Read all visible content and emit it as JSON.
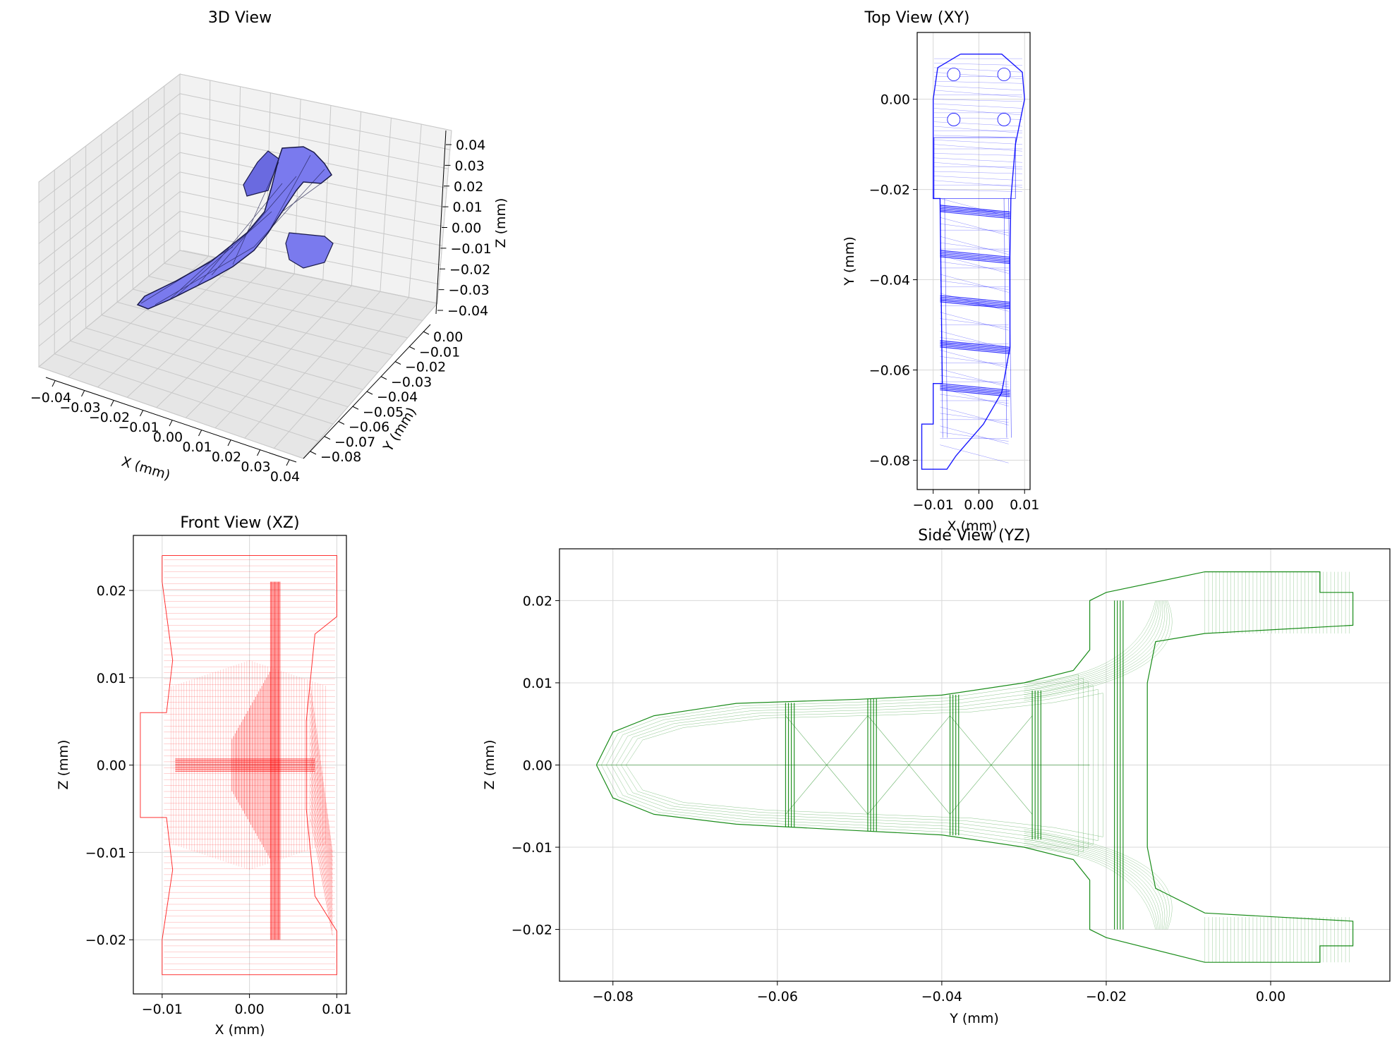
{
  "figure": {
    "colors": {
      "view3d_face": "#7a7aee",
      "view3d_edge": "#1a1a4a",
      "top_view": "#0000ff",
      "front_view": "#ff0000",
      "side_view": "#008000",
      "grid": "#d8d8d8",
      "pane": "#f2f2f2"
    }
  },
  "chart_data": [
    {
      "panel": "view3d",
      "type": "scatter",
      "title": "3D View",
      "xlabel": "X (mm)",
      "ylabel": "Y (mm)",
      "zlabel": "Z (mm)",
      "xticks": [
        "−0.04",
        "−0.03",
        "−0.02",
        "−0.01",
        "0.00",
        "0.01",
        "0.02",
        "0.03",
        "0.04"
      ],
      "yticks": [
        "0.00",
        "−0.01",
        "−0.02",
        "−0.03",
        "−0.04",
        "−0.05",
        "−0.06",
        "−0.07",
        "−0.08"
      ],
      "zticks": [
        "0.04",
        "0.03",
        "0.02",
        "0.01",
        "0.00",
        "−0.01",
        "−0.02",
        "−0.03",
        "−0.04"
      ],
      "xlim": [
        -0.04,
        0.04
      ],
      "ylim": [
        -0.08,
        0.0
      ],
      "zlim": [
        -0.04,
        0.04
      ],
      "grid": true
    },
    {
      "panel": "top",
      "type": "line",
      "title": "Top View (XY)",
      "xlabel": "X (mm)",
      "ylabel": "Y (mm)",
      "xlim": [
        -0.0135,
        0.0112
      ],
      "ylim": [
        -0.0865,
        0.0148
      ],
      "xticks": [
        -0.01,
        0.0,
        0.01
      ],
      "xtick_labels": [
        "−0.01",
        "0.00",
        "0.01"
      ],
      "yticks": [
        0.0,
        -0.02,
        -0.04,
        -0.06,
        -0.08
      ],
      "ytick_labels": [
        "0.00",
        "−0.02",
        "−0.04",
        "−0.06",
        "−0.08"
      ],
      "grid": true,
      "outline": [
        [
          -0.004,
          0.01
        ],
        [
          -0.009,
          0.007
        ],
        [
          -0.01,
          0.0
        ],
        [
          -0.01,
          -0.022
        ],
        [
          -0.0085,
          -0.022
        ],
        [
          -0.008,
          -0.063
        ],
        [
          -0.01,
          -0.063
        ],
        [
          -0.01,
          -0.072
        ],
        [
          -0.0125,
          -0.072
        ],
        [
          -0.0125,
          -0.082
        ],
        [
          -0.007,
          -0.082
        ],
        [
          -0.005,
          -0.079
        ],
        [
          0.001,
          -0.072
        ],
        [
          0.005,
          -0.065
        ],
        [
          0.0068,
          -0.055
        ],
        [
          0.0068,
          -0.035
        ],
        [
          0.007,
          -0.022
        ],
        [
          0.008,
          -0.01
        ],
        [
          0.01,
          0.0
        ],
        [
          0.0095,
          0.006
        ],
        [
          0.005,
          0.01
        ],
        [
          -0.004,
          0.01
        ]
      ]
    },
    {
      "panel": "front",
      "type": "line",
      "title": "Front View (XZ)",
      "xlabel": "X (mm)",
      "ylabel": "Z (mm)",
      "xlim": [
        -0.0133,
        0.0111
      ],
      "ylim": [
        -0.0262,
        0.0263
      ],
      "xticks": [
        -0.01,
        0.0,
        0.01
      ],
      "xtick_labels": [
        "−0.01",
        "0.00",
        "0.01"
      ],
      "yticks": [
        0.02,
        0.01,
        0.0,
        -0.01,
        -0.02
      ],
      "ytick_labels": [
        "0.02",
        "0.01",
        "0.00",
        "−0.01",
        "−0.02"
      ],
      "grid": true,
      "outline": [
        [
          -0.01,
          0.024
        ],
        [
          0.01,
          0.024
        ],
        [
          0.01,
          0.017
        ],
        [
          0.0075,
          0.015
        ],
        [
          0.0065,
          0.005
        ],
        [
          0.0065,
          -0.005
        ],
        [
          0.0075,
          -0.015
        ],
        [
          0.01,
          -0.019
        ],
        [
          0.01,
          -0.024
        ],
        [
          -0.01,
          -0.024
        ],
        [
          -0.01,
          -0.02
        ],
        [
          -0.0088,
          -0.012
        ],
        [
          -0.0095,
          -0.006
        ],
        [
          -0.0125,
          -0.006
        ],
        [
          -0.0125,
          0.006
        ],
        [
          -0.0095,
          0.006
        ],
        [
          -0.0088,
          0.012
        ],
        [
          -0.01,
          0.021
        ],
        [
          -0.01,
          0.024
        ]
      ]
    },
    {
      "panel": "side",
      "type": "line",
      "title": "Side View (YZ)",
      "xlabel": "Y (mm)",
      "ylabel": "Z (mm)",
      "xlim": [
        -0.0865,
        0.0145
      ],
      "ylim": [
        -0.0263,
        0.0263
      ],
      "xticks": [
        -0.08,
        -0.06,
        -0.04,
        -0.02,
        0.0
      ],
      "xtick_labels": [
        "−0.08",
        "−0.06",
        "−0.04",
        "−0.02",
        "0.00"
      ],
      "yticks": [
        0.02,
        0.01,
        0.0,
        -0.01,
        -0.02
      ],
      "ytick_labels": [
        "0.02",
        "0.01",
        "0.00",
        "−0.01",
        "−0.02"
      ],
      "grid": true,
      "outline": [
        [
          -0.082,
          0.0
        ],
        [
          -0.08,
          0.004
        ],
        [
          -0.075,
          0.006
        ],
        [
          -0.065,
          0.0075
        ],
        [
          -0.05,
          0.008
        ],
        [
          -0.04,
          0.0085
        ],
        [
          -0.03,
          0.01
        ],
        [
          -0.024,
          0.0115
        ],
        [
          -0.022,
          0.014
        ],
        [
          -0.022,
          0.02
        ],
        [
          -0.02,
          0.021
        ],
        [
          -0.008,
          0.0235
        ],
        [
          0.006,
          0.0235
        ],
        [
          0.006,
          0.021
        ],
        [
          0.01,
          0.021
        ],
        [
          0.01,
          0.017
        ],
        [
          -0.008,
          0.016
        ],
        [
          -0.014,
          0.015
        ],
        [
          -0.015,
          0.01
        ],
        [
          -0.015,
          -0.01
        ],
        [
          -0.014,
          -0.015
        ],
        [
          -0.008,
          -0.018
        ],
        [
          0.01,
          -0.019
        ],
        [
          0.01,
          -0.022
        ],
        [
          0.006,
          -0.022
        ],
        [
          0.006,
          -0.024
        ],
        [
          -0.008,
          -0.024
        ],
        [
          -0.02,
          -0.021
        ],
        [
          -0.022,
          -0.02
        ],
        [
          -0.022,
          -0.014
        ],
        [
          -0.024,
          -0.0115
        ],
        [
          -0.03,
          -0.01
        ],
        [
          -0.04,
          -0.0085
        ],
        [
          -0.05,
          -0.008
        ],
        [
          -0.065,
          -0.0072
        ],
        [
          -0.075,
          -0.006
        ],
        [
          -0.08,
          -0.004
        ],
        [
          -0.082,
          0.0
        ]
      ],
      "ribs_y": [
        -0.059,
        -0.049,
        -0.039,
        -0.029,
        -0.019
      ]
    }
  ]
}
